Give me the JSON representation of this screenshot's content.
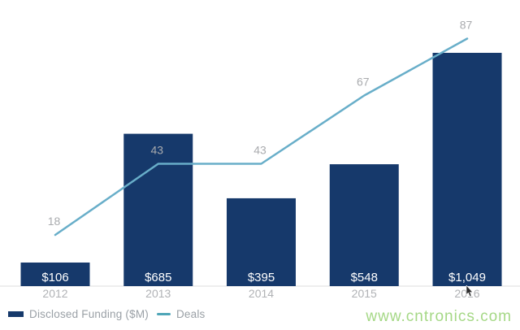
{
  "chart_data": {
    "type": "bar",
    "subtype": "bar-with-line-overlay",
    "categories": [
      "2012",
      "2013",
      "2014",
      "2015",
      "2016"
    ],
    "series": [
      {
        "name": "Disclosed Funding ($M)",
        "type": "bar",
        "values": [
          106,
          685,
          395,
          548,
          1049
        ],
        "labels": [
          "$106",
          "$685",
          "$395",
          "$548",
          "$1,049"
        ],
        "color": "#16396b",
        "label_color": "#ffffff"
      },
      {
        "name": "Deals",
        "type": "line",
        "values": [
          18,
          43,
          43,
          67,
          87
        ],
        "labels": [
          "18",
          "43",
          "43",
          "67",
          "87"
        ],
        "color": "#68aec9",
        "label_color": "#a9abae"
      }
    ],
    "title": "",
    "xlabel": "",
    "ylabel": "",
    "bar_axis_range": [
      0,
      1049
    ],
    "line_axis_range": [
      0,
      100
    ],
    "grid": false,
    "legend_position": "bottom-left",
    "axis_line_color": "#e9e9e9",
    "tick_label_color": "#b0b2b5"
  },
  "legend": {
    "funding": {
      "label": "Disclosed Funding ($M)",
      "color": "#16396b"
    },
    "deals": {
      "label": "Deals",
      "color": "#4fa6b8"
    }
  },
  "watermark": {
    "text": "www.cntronics.com",
    "color": "#a5d886"
  }
}
